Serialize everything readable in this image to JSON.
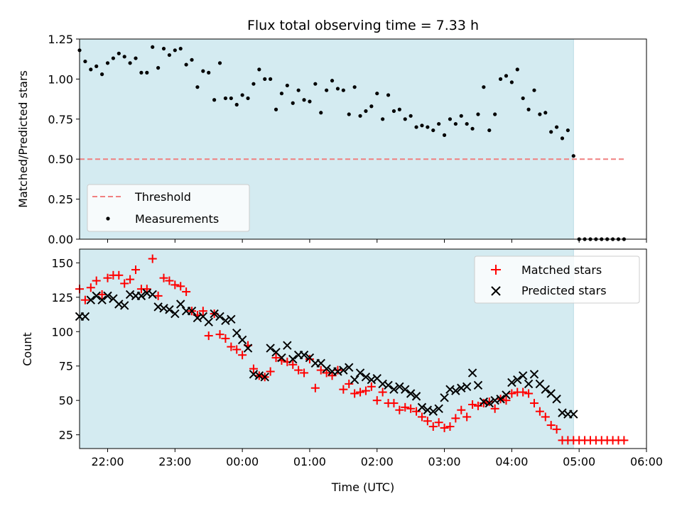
{
  "figure": {
    "title": "Flux total observing time = 7.33 h",
    "xlabel": "Time (UTC)"
  },
  "colors": {
    "shade": "#d4ebf1",
    "threshold": "#f08080",
    "measurements": "#000000",
    "matched": "#ff0000",
    "predicted": "#000000"
  },
  "chart_data": [
    {
      "type": "scatter",
      "ylabel": "Matched/Predicted stars",
      "xlim": [
        "21:35",
        "06:00"
      ],
      "ylim": [
        0,
        1.25
      ],
      "x_ticks": [
        "22:00",
        "23:00",
        "00:00",
        "01:00",
        "02:00",
        "03:00",
        "04:00",
        "05:00",
        "06:00"
      ],
      "y_ticks": [
        "0.00",
        "0.25",
        "0.50",
        "0.75",
        "1.00",
        "1.25"
      ],
      "observing_window": [
        "21:35",
        "04:55"
      ],
      "threshold": {
        "name": "Threshold",
        "value": 0.5,
        "x_range": [
          "21:35",
          "05:40"
        ]
      },
      "legend": {
        "location": "lower-left",
        "entries": [
          "Threshold",
          "Measurements"
        ]
      },
      "series": [
        {
          "name": "Measurements",
          "x": [
            "21:35",
            "21:40",
            "21:45",
            "21:50",
            "21:55",
            "22:00",
            "22:05",
            "22:10",
            "22:15",
            "22:20",
            "22:25",
            "22:30",
            "22:35",
            "22:40",
            "22:45",
            "22:50",
            "22:55",
            "23:00",
            "23:05",
            "23:10",
            "23:15",
            "23:20",
            "23:25",
            "23:30",
            "23:35",
            "23:40",
            "23:45",
            "23:50",
            "23:55",
            "00:00",
            "00:05",
            "00:10",
            "00:15",
            "00:20",
            "00:25",
            "00:30",
            "00:35",
            "00:40",
            "00:45",
            "00:50",
            "00:55",
            "01:00",
            "01:05",
            "01:10",
            "01:15",
            "01:20",
            "01:25",
            "01:30",
            "01:35",
            "01:40",
            "01:45",
            "01:50",
            "01:55",
            "02:00",
            "02:05",
            "02:10",
            "02:15",
            "02:20",
            "02:25",
            "02:30",
            "02:35",
            "02:40",
            "02:45",
            "02:50",
            "02:55",
            "03:00",
            "03:05",
            "03:10",
            "03:15",
            "03:20",
            "03:25",
            "03:30",
            "03:35",
            "03:40",
            "03:45",
            "03:50",
            "03:55",
            "04:00",
            "04:05",
            "04:10",
            "04:15",
            "04:20",
            "04:25",
            "04:30",
            "04:35",
            "04:40",
            "04:45",
            "04:50",
            "04:55",
            "05:00",
            "05:05",
            "05:10",
            "05:15",
            "05:20",
            "05:25",
            "05:30",
            "05:35",
            "05:40"
          ],
          "y": [
            1.18,
            1.11,
            1.06,
            1.08,
            1.03,
            1.1,
            1.13,
            1.16,
            1.14,
            1.1,
            1.13,
            1.04,
            1.04,
            1.2,
            1.07,
            1.19,
            1.15,
            1.18,
            1.19,
            1.09,
            1.12,
            0.95,
            1.05,
            1.04,
            0.87,
            1.1,
            0.88,
            0.88,
            0.84,
            0.9,
            0.88,
            0.97,
            1.06,
            1.0,
            1.0,
            0.81,
            0.91,
            0.96,
            0.85,
            0.93,
            0.87,
            0.86,
            0.97,
            0.79,
            0.93,
            0.99,
            0.94,
            0.93,
            0.78,
            0.95,
            0.77,
            0.8,
            0.83,
            0.91,
            0.75,
            0.9,
            0.8,
            0.81,
            0.75,
            0.77,
            0.7,
            0.71,
            0.7,
            0.68,
            0.72,
            0.65,
            0.75,
            0.72,
            0.77,
            0.72,
            0.69,
            0.78,
            0.95,
            0.68,
            0.78,
            1.0,
            1.02,
            0.98,
            1.06,
            0.88,
            0.81,
            0.93,
            0.78,
            0.79,
            0.67,
            0.7,
            0.63,
            0.68,
            0.52,
            0.0,
            0.0,
            0.0,
            0.0,
            0.0,
            0.0,
            0.0,
            0.0,
            0.0
          ]
        }
      ]
    },
    {
      "type": "scatter",
      "ylabel": "Count",
      "xlim": [
        "21:35",
        "06:00"
      ],
      "ylim": [
        15,
        160
      ],
      "x_ticks": [
        "22:00",
        "23:00",
        "00:00",
        "01:00",
        "02:00",
        "03:00",
        "04:00",
        "05:00",
        "06:00"
      ],
      "y_ticks": [
        "25",
        "50",
        "75",
        "100",
        "125",
        "150"
      ],
      "observing_window": [
        "21:35",
        "04:55"
      ],
      "legend": {
        "location": "upper-right",
        "entries": [
          "Matched stars",
          "Predicted stars"
        ]
      },
      "series": [
        {
          "name": "Matched stars",
          "marker": "plus",
          "x": [
            "21:35",
            "21:40",
            "21:45",
            "21:50",
            "21:55",
            "22:00",
            "22:05",
            "22:10",
            "22:15",
            "22:20",
            "22:25",
            "22:30",
            "22:35",
            "22:40",
            "22:45",
            "22:50",
            "22:55",
            "23:00",
            "23:05",
            "23:10",
            "23:15",
            "23:20",
            "23:25",
            "23:30",
            "23:35",
            "23:40",
            "23:45",
            "23:50",
            "23:55",
            "00:00",
            "00:05",
            "00:10",
            "00:15",
            "00:20",
            "00:25",
            "00:30",
            "00:35",
            "00:40",
            "00:45",
            "00:50",
            "00:55",
            "01:00",
            "01:05",
            "01:10",
            "01:15",
            "01:20",
            "01:25",
            "01:30",
            "01:35",
            "01:40",
            "01:45",
            "01:50",
            "01:55",
            "02:00",
            "02:05",
            "02:10",
            "02:15",
            "02:20",
            "02:25",
            "02:30",
            "02:35",
            "02:40",
            "02:45",
            "02:50",
            "02:55",
            "03:00",
            "03:05",
            "03:10",
            "03:15",
            "03:20",
            "03:25",
            "03:30",
            "03:35",
            "03:40",
            "03:45",
            "03:50",
            "03:55",
            "04:00",
            "04:05",
            "04:10",
            "04:15",
            "04:20",
            "04:25",
            "04:30",
            "04:35",
            "04:40",
            "04:45",
            "04:50",
            "04:55",
            "05:00",
            "05:05",
            "05:10",
            "05:15",
            "05:20",
            "05:25",
            "05:30",
            "05:35",
            "05:40"
          ],
          "y": [
            131,
            123,
            132,
            137,
            127,
            139,
            141,
            141,
            135,
            138,
            145,
            131,
            131,
            153,
            126,
            139,
            137,
            134,
            133,
            129,
            115,
            112,
            115,
            97,
            113,
            98,
            95,
            89,
            87,
            83,
            90,
            73,
            68,
            67,
            71,
            81,
            79,
            78,
            76,
            72,
            70,
            80,
            59,
            72,
            70,
            68,
            72,
            58,
            62,
            55,
            56,
            57,
            60,
            50,
            56,
            48,
            48,
            43,
            45,
            44,
            42,
            38,
            35,
            31,
            34,
            30,
            31,
            37,
            43,
            38,
            47,
            46,
            48,
            49,
            44,
            51,
            50,
            55,
            56,
            56,
            55,
            48,
            42,
            38,
            32,
            29,
            21,
            21,
            21,
            21,
            21,
            21,
            21,
            21,
            21,
            21,
            21,
            21
          ]
        },
        {
          "name": "Predicted stars",
          "marker": "x",
          "x": [
            "21:35",
            "21:40",
            "21:45",
            "21:50",
            "21:55",
            "22:00",
            "22:05",
            "22:10",
            "22:15",
            "22:20",
            "22:25",
            "22:30",
            "22:35",
            "22:40",
            "22:45",
            "22:50",
            "22:55",
            "23:00",
            "23:05",
            "23:10",
            "23:15",
            "23:20",
            "23:25",
            "23:30",
            "23:35",
            "23:40",
            "23:45",
            "23:50",
            "23:55",
            "00:00",
            "00:05",
            "00:10",
            "00:15",
            "00:20",
            "00:25",
            "00:30",
            "00:35",
            "00:40",
            "00:45",
            "00:50",
            "00:55",
            "01:00",
            "01:05",
            "01:10",
            "01:15",
            "01:20",
            "01:25",
            "01:30",
            "01:35",
            "01:40",
            "01:45",
            "01:50",
            "01:55",
            "02:00",
            "02:05",
            "02:10",
            "02:15",
            "02:20",
            "02:25",
            "02:30",
            "02:35",
            "02:40",
            "02:45",
            "02:50",
            "02:55",
            "03:00",
            "03:05",
            "03:10",
            "03:15",
            "03:20",
            "03:25",
            "03:30",
            "03:35",
            "03:40",
            "03:45",
            "03:50",
            "03:55",
            "04:00",
            "04:05",
            "04:10",
            "04:15",
            "04:20",
            "04:25",
            "04:30",
            "04:35",
            "04:40",
            "04:45",
            "04:50",
            "04:55"
          ],
          "y": [
            111,
            111,
            123,
            126,
            123,
            126,
            124,
            120,
            119,
            127,
            126,
            126,
            128,
            127,
            118,
            117,
            116,
            113,
            120,
            115,
            115,
            110,
            111,
            107,
            113,
            111,
            108,
            109,
            99,
            94,
            88,
            69,
            68,
            67,
            88,
            85,
            81,
            90,
            80,
            83,
            83,
            81,
            77,
            77,
            73,
            71,
            71,
            72,
            74,
            65,
            70,
            67,
            65,
            66,
            62,
            61,
            58,
            60,
            58,
            55,
            53,
            45,
            43,
            42,
            44,
            52,
            58,
            57,
            59,
            60,
            70,
            61,
            49,
            48,
            50,
            51,
            54,
            63,
            65,
            68,
            62,
            69,
            62,
            58,
            55,
            51,
            41,
            40,
            40
          ]
        }
      ]
    }
  ]
}
